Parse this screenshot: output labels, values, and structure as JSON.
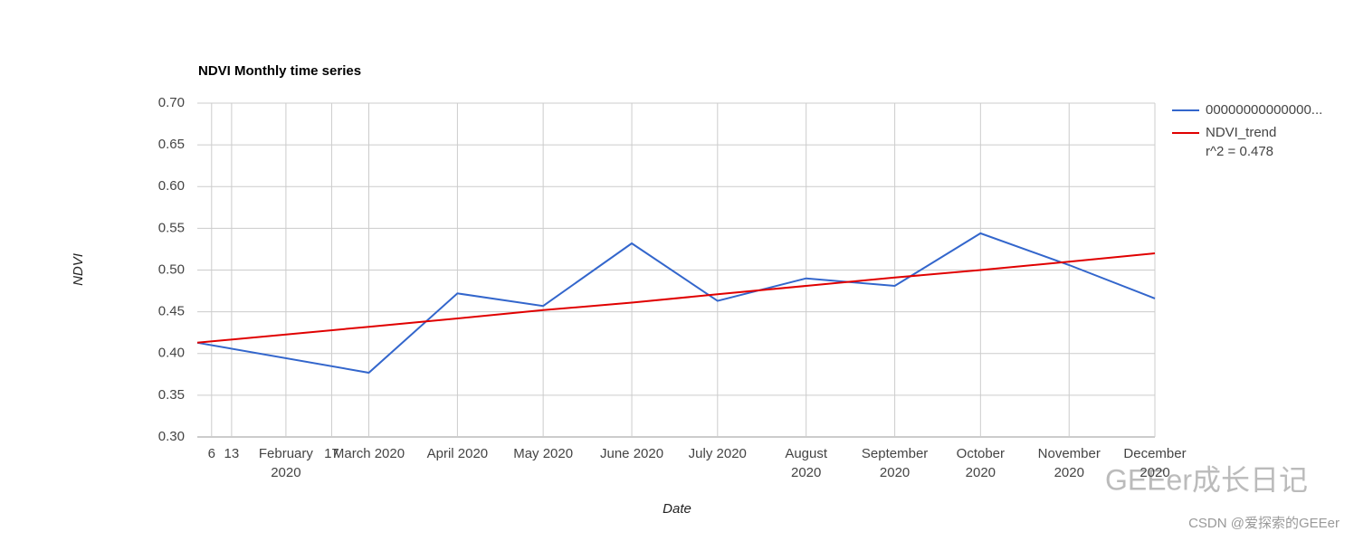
{
  "chart_data": {
    "type": "line",
    "title": "NDVI Monthly time series",
    "x_label": "Date",
    "y_label": "NDVI",
    "x": [
      "2020-01-01",
      "2020-03-01",
      "2020-04-01",
      "2020-05-01",
      "2020-06-01",
      "2020-07-01",
      "2020-08-01",
      "2020-09-01",
      "2020-10-01",
      "2020-11-01",
      "2020-12-01"
    ],
    "series": [
      {
        "name": "00000000000000...",
        "color": "#3366cc",
        "values": [
          0.413,
          0.377,
          0.472,
          0.457,
          0.532,
          0.463,
          0.49,
          0.481,
          0.544,
          0.506,
          0.466
        ]
      },
      {
        "name": "NDVI_trend",
        "color": "#e00000",
        "values": [
          0.413,
          0.432,
          0.442,
          0.452,
          0.461,
          0.471,
          0.481,
          0.491,
          0.5,
          0.51,
          0.52
        ]
      }
    ],
    "trend_label": "r^2 = 0.478",
    "xlim": [
      "2020-01-01",
      "2020-12-01"
    ],
    "xticks": [
      {
        "value": "2020-01-06",
        "label": "6"
      },
      {
        "value": "2020-01-13",
        "label": "13"
      },
      {
        "value": "2020-02-01",
        "label": "February 2020"
      },
      {
        "value": "2020-02-17",
        "label": "17"
      },
      {
        "value": "2020-03-01",
        "label": "March 2020"
      },
      {
        "value": "2020-04-01",
        "label": "April 2020"
      },
      {
        "value": "2020-05-01",
        "label": "May 2020"
      },
      {
        "value": "2020-06-01",
        "label": "June 2020"
      },
      {
        "value": "2020-07-01",
        "label": "July 2020"
      },
      {
        "value": "2020-08-01",
        "label": "August 2020"
      },
      {
        "value": "2020-09-01",
        "label": "September 2020"
      },
      {
        "value": "2020-10-01",
        "label": "October 2020"
      },
      {
        "value": "2020-11-01",
        "label": "November 2020"
      },
      {
        "value": "2020-12-01",
        "label": "December 2020"
      }
    ],
    "ylim": [
      0.3,
      0.7
    ],
    "yticks": [
      {
        "value": 0.3,
        "label": "0.30"
      },
      {
        "value": 0.35,
        "label": "0.35"
      },
      {
        "value": 0.4,
        "label": "0.40"
      },
      {
        "value": 0.45,
        "label": "0.45"
      },
      {
        "value": 0.5,
        "label": "0.50"
      },
      {
        "value": 0.55,
        "label": "0.55"
      },
      {
        "value": 0.6,
        "label": "0.60"
      },
      {
        "value": 0.65,
        "label": "0.65"
      },
      {
        "value": 0.7,
        "label": "0.70"
      }
    ],
    "grid": true,
    "legend": "right"
  },
  "watermark": {
    "logo_text": "GEEer成长日记",
    "credit": "CSDN @爱探索的GEEer"
  }
}
